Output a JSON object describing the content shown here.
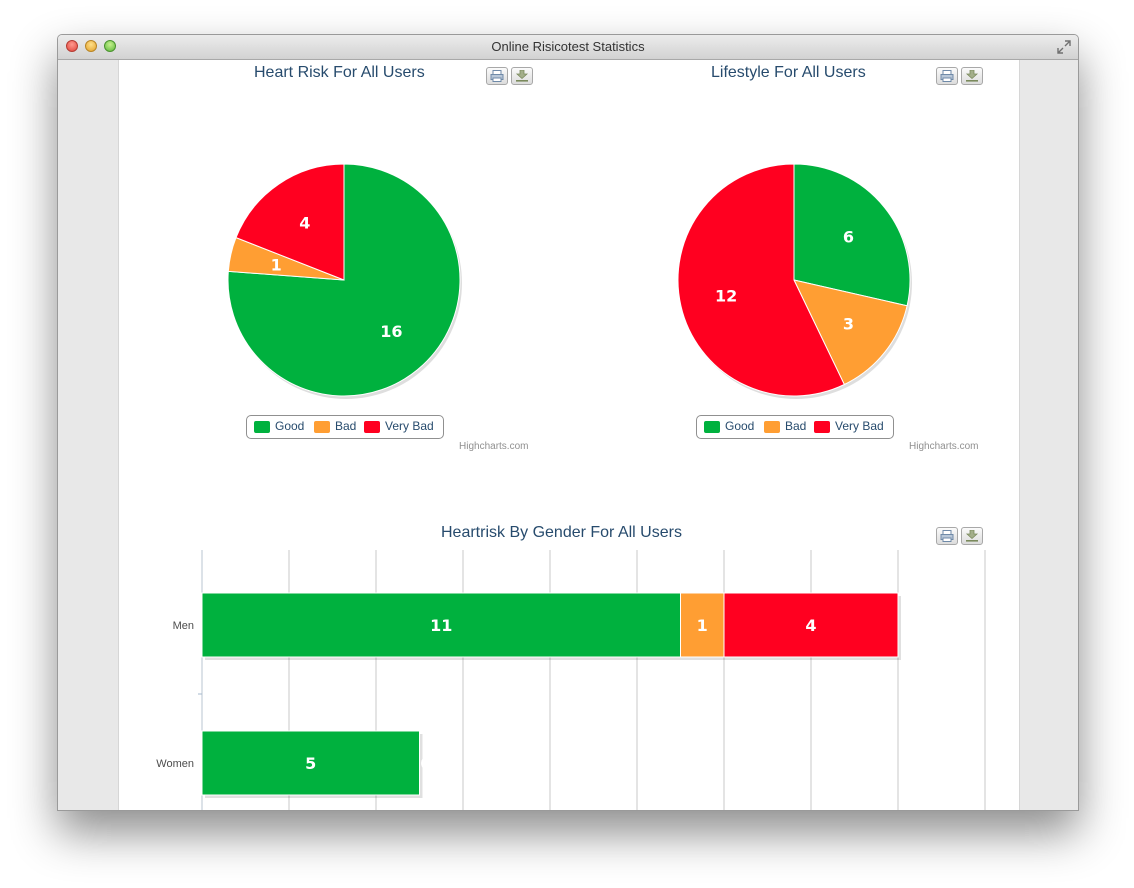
{
  "window": {
    "title": "Online Risicotest Statistics"
  },
  "colors": {
    "good": "#00b13e",
    "bad": "#ff9e33",
    "very_bad": "#ff0020"
  },
  "charts": {
    "heart": {
      "title": "Heart Risk For All Users",
      "credits": "Highcharts.com"
    },
    "lifestyle": {
      "title": "Lifestyle For All Users",
      "credits": "Highcharts.com"
    },
    "gender": {
      "title": "Heartrisk By Gender For All Users"
    }
  },
  "legend": [
    "Good",
    "Bad",
    "Very Bad"
  ],
  "chart_data": [
    {
      "type": "pie",
      "title": "Heart Risk For All Users",
      "labels": [
        "Good",
        "Bad",
        "Very Bad"
      ],
      "values": [
        16,
        1,
        4
      ]
    },
    {
      "type": "pie",
      "title": "Lifestyle For All Users",
      "labels": [
        "Good",
        "Bad",
        "Very Bad"
      ],
      "values": [
        6,
        3,
        12
      ]
    },
    {
      "type": "bar",
      "stacked": true,
      "orientation": "horizontal",
      "title": "Heartrisk By Gender For All Users",
      "categories": [
        "Men",
        "Women"
      ],
      "series": [
        {
          "name": "Good",
          "values": [
            11,
            5
          ]
        },
        {
          "name": "Bad",
          "values": [
            1,
            0
          ]
        },
        {
          "name": "Very Bad",
          "values": [
            4,
            0
          ]
        }
      ],
      "xlim": [
        0,
        18
      ],
      "grid": true
    }
  ]
}
